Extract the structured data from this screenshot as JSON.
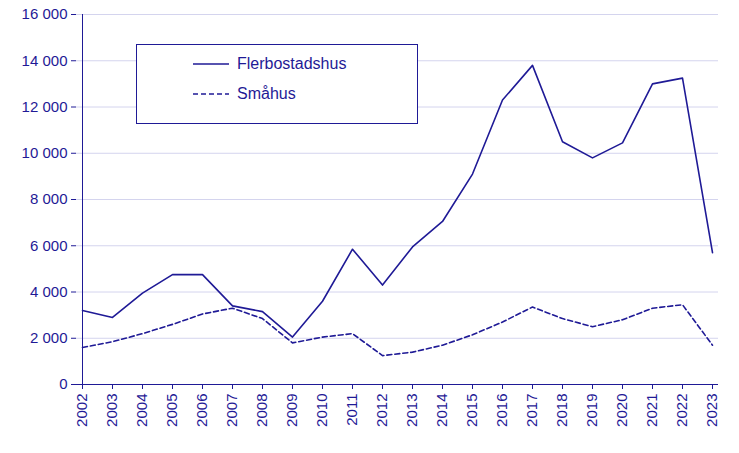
{
  "chart_data": {
    "type": "line",
    "categories": [
      "2002",
      "2003",
      "2004",
      "2005",
      "2006",
      "2007",
      "2008",
      "2009",
      "2010",
      "2011",
      "2012",
      "2013",
      "2014",
      "2015",
      "2016",
      "2017",
      "2018",
      "2019",
      "2020",
      "2021",
      "2022",
      "2023"
    ],
    "series": [
      {
        "name": "Flerbostadshus",
        "color": "#1f1a96",
        "line_style": "solid",
        "values": [
          3200,
          2900,
          3950,
          4750,
          4750,
          3400,
          3150,
          2050,
          3600,
          5850,
          4300,
          5950,
          7050,
          9100,
          12300,
          13800,
          10500,
          9800,
          10450,
          13000,
          13250,
          5700
        ]
      },
      {
        "name": "Småhus",
        "color": "#1f1a96",
        "line_style": "dashed",
        "values": [
          1600,
          1850,
          2200,
          2600,
          3050,
          3300,
          2850,
          1800,
          2050,
          2200,
          1250,
          1400,
          1700,
          2150,
          2700,
          3350,
          2850,
          2500,
          2800,
          3300,
          3450,
          1700
        ]
      }
    ],
    "ylim": [
      0,
      16000
    ],
    "yticks": [
      0,
      {
        "value": 2000,
        "label": "2 000"
      },
      {
        "value": 4000,
        "label": "4 000"
      },
      {
        "value": 6000,
        "label": "6 000"
      },
      {
        "value": 8000,
        "label": "8 000"
      },
      {
        "value": 10000,
        "label": "10 000"
      },
      {
        "value": 12000,
        "label": "12 000"
      },
      {
        "value": 14000,
        "label": "14 000"
      },
      {
        "value": 16000,
        "label": "16 000"
      }
    ],
    "grid": true,
    "legend": "top-left"
  }
}
